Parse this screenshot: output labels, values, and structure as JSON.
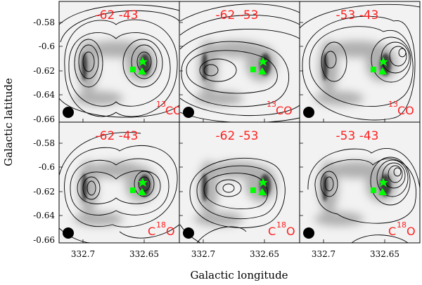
{
  "figure": {
    "xlabel": "Galactic longitude",
    "ylabel": "Galactic latitude",
    "x_ticks": [
      "332.7",
      "332.65"
    ],
    "y_ticks": [
      "-0.58",
      "-0.6",
      "-0.62",
      "-0.64",
      "-0.66"
    ],
    "panels": [
      {
        "velocity": "-62 -43",
        "isotope": "13",
        "molecule": "CO"
      },
      {
        "velocity": "-62 -53",
        "isotope": "13",
        "molecule": "CO"
      },
      {
        "velocity": "-53 -43",
        "isotope": "13",
        "molecule": "CO"
      },
      {
        "velocity": "-62 -43",
        "isotope": "18",
        "molecule": "O",
        "prefix": "C"
      },
      {
        "velocity": "-62 -53",
        "isotope": "18",
        "molecule": "O",
        "prefix": "C"
      },
      {
        "velocity": "-53 -43",
        "isotope": "18",
        "molecule": "O",
        "prefix": "C"
      }
    ],
    "colors": {
      "label": "#ff2020",
      "markers": "#00ff00",
      "contours": "#000000",
      "beam": "#000000"
    },
    "marker_icons": [
      "star-icon",
      "square-icon",
      "triangle-icon"
    ]
  }
}
